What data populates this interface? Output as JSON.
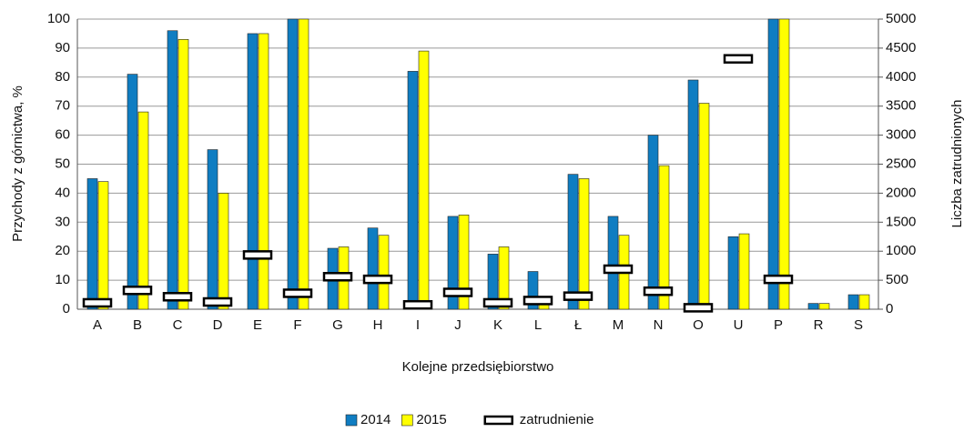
{
  "chart_data": {
    "type": "bar",
    "y_label": "Przychody z górnictwa, %",
    "y2_label": "Liczba zatrudnionych",
    "x_label": "Kolejne przedsiębiorstwo",
    "categories": [
      "A",
      "B",
      "C",
      "D",
      "E",
      "F",
      "G",
      "H",
      "I",
      "J",
      "K",
      "L",
      "Ł",
      "M",
      "N",
      "O",
      "U",
      "P",
      "R",
      "S"
    ],
    "series": [
      {
        "name": "2014",
        "color": "#0f7dc2",
        "values": [
          45,
          81,
          96,
          55,
          95,
          100,
          21,
          28,
          82,
          32,
          19,
          13,
          46.5,
          32,
          60,
          79,
          25,
          100,
          2,
          5
        ]
      },
      {
        "name": "2015",
        "color": "#ffff00",
        "values": [
          44,
          68,
          93,
          40,
          95,
          100,
          21.5,
          25.5,
          89,
          32.5,
          21.5,
          2,
          45,
          25.5,
          49.5,
          71,
          26,
          100,
          2,
          5
        ]
      },
      {
        "name": "zatrudnienie",
        "color": "#ffffff",
        "axis": "y2",
        "style": "dash",
        "values": [
          110,
          325,
          215,
          125,
          935,
          275,
          560,
          515,
          75,
          290,
          110,
          150,
          225,
          690,
          310,
          25,
          4315,
          515,
          null,
          null
        ]
      }
    ],
    "ylim": [
      0,
      100
    ],
    "yticks": [
      0,
      10,
      20,
      30,
      40,
      50,
      60,
      70,
      80,
      90,
      100
    ],
    "y2lim": [
      0,
      5000
    ],
    "y2ticks": [
      0,
      500,
      1000,
      1500,
      2000,
      2500,
      3000,
      3500,
      4000,
      4500,
      5000
    ],
    "grid": true,
    "legend": "bottom"
  }
}
